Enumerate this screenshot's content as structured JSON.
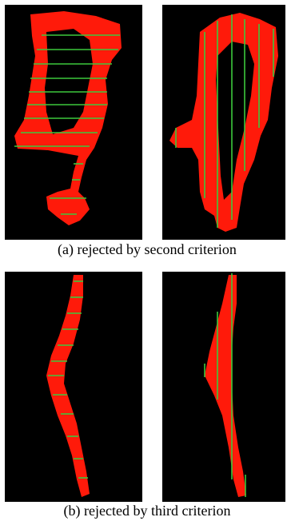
{
  "captions": [
    "(a) rejected by second criterion",
    "(b) rejected by third criterion"
  ]
}
